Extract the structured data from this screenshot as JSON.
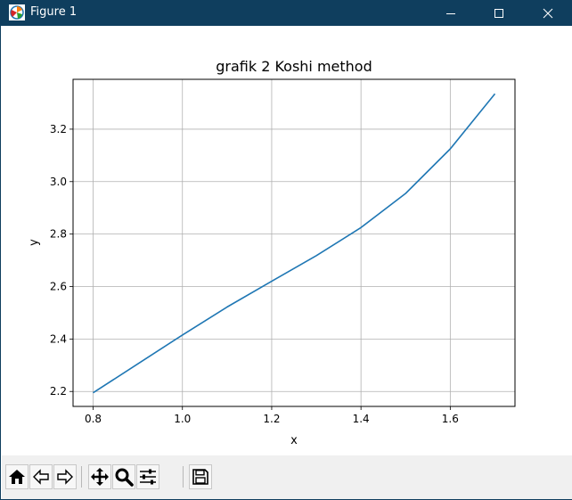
{
  "window": {
    "title": "Figure 1",
    "minimize_icon": "minimize-icon",
    "maximize_icon": "maximize-icon",
    "close_icon": "close-icon"
  },
  "chart_data": {
    "type": "line",
    "title": "grafik 2 Koshi method",
    "xlabel": "x",
    "ylabel": "y",
    "xlim": [
      0.755,
      1.745
    ],
    "ylim": [
      2.143,
      3.39
    ],
    "xticks": [
      0.8,
      1.0,
      1.2,
      1.4,
      1.6
    ],
    "xtick_labels": [
      "0.8",
      "1.0",
      "1.2",
      "1.4",
      "1.6"
    ],
    "yticks": [
      2.2,
      2.4,
      2.6,
      2.8,
      3.0,
      3.2
    ],
    "ytick_labels": [
      "2.2",
      "2.4",
      "2.6",
      "2.8",
      "3.0",
      "3.2"
    ],
    "grid": true,
    "series": [
      {
        "x": [
          0.8,
          0.9,
          1.0,
          1.1,
          1.2,
          1.3,
          1.4,
          1.5,
          1.6,
          1.7
        ],
        "y": [
          2.195,
          2.305,
          2.415,
          2.522,
          2.62,
          2.718,
          2.825,
          2.955,
          3.125,
          3.335
        ],
        "color": "#1f77b4"
      }
    ]
  },
  "toolbar": {
    "buttons": [
      {
        "icon": "home-icon"
      },
      {
        "icon": "back-arrow-icon"
      },
      {
        "icon": "forward-arrow-icon"
      },
      {
        "icon": "pan-icon"
      },
      {
        "icon": "zoom-icon"
      },
      {
        "icon": "subplots-icon"
      },
      {
        "icon": "save-icon"
      }
    ]
  }
}
